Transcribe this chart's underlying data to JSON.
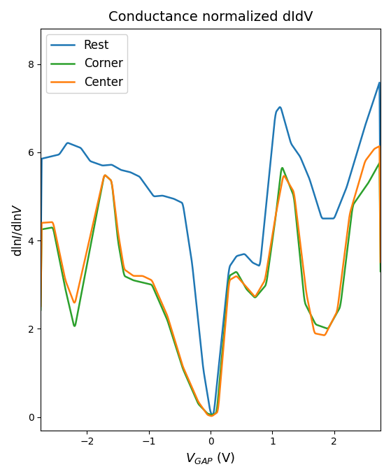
{
  "title": "Conductance normalized dIdV",
  "xlabel": "$V_{GAP}$ (V)",
  "ylabel": "dln$I$/dln$V$",
  "xlim": [
    -2.75,
    2.75
  ],
  "ylim": [
    -0.3,
    8.8
  ],
  "line_colors": [
    "#1f77b4",
    "#2ca02c",
    "#ff7f0e"
  ],
  "line_labels": [
    "Rest",
    "Corner",
    "Center"
  ],
  "line_width": 1.8,
  "figsize": [
    5.59,
    6.81
  ],
  "dpi": 100
}
